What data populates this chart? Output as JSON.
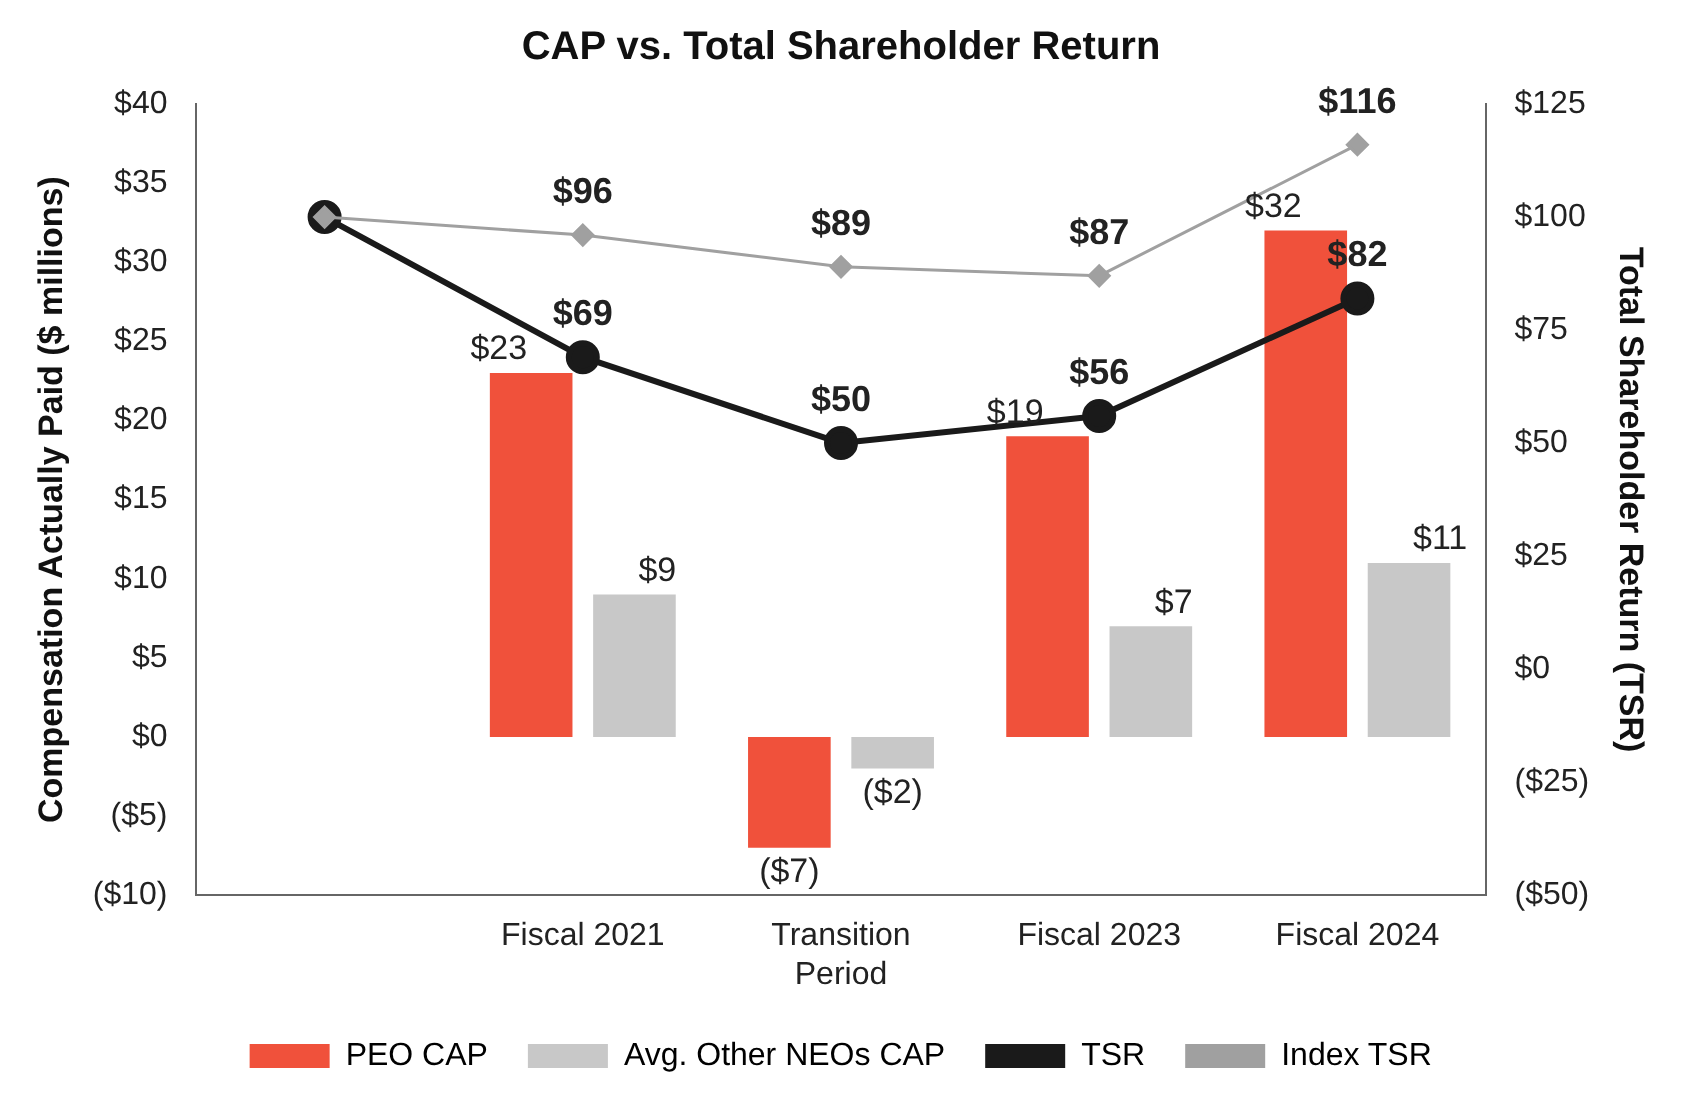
{
  "chart_data": {
    "type": "bar",
    "title": "CAP vs. Total Shareholder Return",
    "ylabel": "Compensation Actually Paid ($ millions)",
    "y2label": "Total Shareholder Return (TSR)",
    "categories": [
      null,
      "Fiscal 2021",
      "Transition Period",
      "Fiscal 2023",
      "Fiscal 2024"
    ],
    "series": [
      {
        "name": "PEO CAP",
        "color": "#f0513b",
        "values": [
          null,
          23,
          -7,
          19,
          32
        ],
        "value_labels": [
          null,
          "$23",
          "($7)",
          "$19",
          "$32"
        ]
      },
      {
        "name": "Avg. Other NEOs CAP",
        "color": "#c8c8c8",
        "values": [
          null,
          9,
          -2,
          7,
          11
        ],
        "value_labels": [
          null,
          "$9",
          "($2)",
          "$7",
          "$11"
        ]
      },
      {
        "name": "TSR",
        "type": "line",
        "axis": "y2",
        "color": "#1a1a1a",
        "marker": "circle",
        "values": [
          100,
          69,
          50,
          56,
          82
        ],
        "value_labels": [
          null,
          "$69",
          "$50",
          "$56",
          "$82"
        ]
      },
      {
        "name": "Index TSR",
        "type": "line",
        "axis": "y2",
        "color": "#a0a0a0",
        "marker": "diamond",
        "values": [
          100,
          96,
          89,
          87,
          116
        ],
        "value_labels": [
          null,
          "$96",
          "$89",
          "$87",
          "$116"
        ]
      }
    ],
    "ylim": [
      -10,
      40
    ],
    "yticks": [
      {
        "value": -10,
        "label": "($10)"
      },
      {
        "value": -5,
        "label": "($5)"
      },
      {
        "value": 0,
        "label": "$0"
      },
      {
        "value": 5,
        "label": "$5"
      },
      {
        "value": 10,
        "label": "$10"
      },
      {
        "value": 15,
        "label": "$15"
      },
      {
        "value": 20,
        "label": "$20"
      },
      {
        "value": 25,
        "label": "$25"
      },
      {
        "value": 30,
        "label": "$30"
      },
      {
        "value": 35,
        "label": "$35"
      },
      {
        "value": 40,
        "label": "$40"
      }
    ],
    "y2lim": [
      -50,
      125
    ],
    "y2ticks": [
      {
        "value": -50,
        "label": "($50)"
      },
      {
        "value": -25,
        "label": "($25)"
      },
      {
        "value": 0,
        "label": "$0"
      },
      {
        "value": 25,
        "label": "$25"
      },
      {
        "value": 50,
        "label": "$50"
      },
      {
        "value": 75,
        "label": "$75"
      },
      {
        "value": 100,
        "label": "$100"
      },
      {
        "value": 125,
        "label": "$125"
      }
    ],
    "grid": false,
    "legend": "bottom"
  }
}
